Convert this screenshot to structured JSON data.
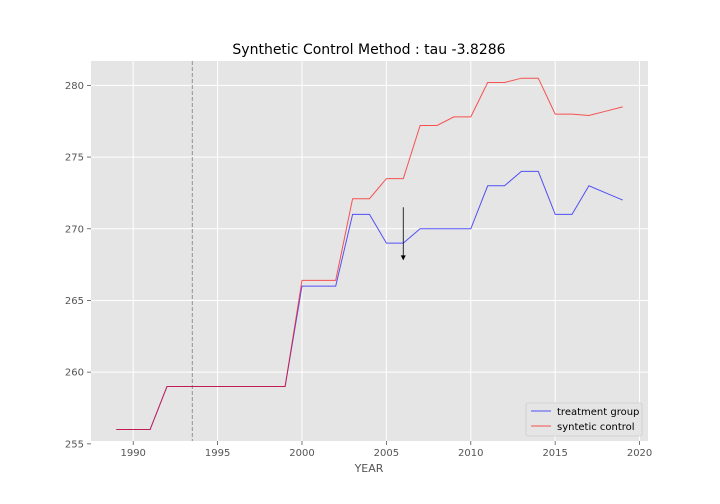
{
  "chart_data": {
    "type": "line",
    "title": "Synthetic Control Method : tau -3.8286",
    "xlabel": "YEAR",
    "ylabel": "",
    "xlim": [
      1987.5,
      2020.5
    ],
    "ylim": [
      255.2,
      281.7
    ],
    "xticks": [
      1990,
      1995,
      2000,
      2005,
      2010,
      2015,
      2020
    ],
    "yticks": [
      255,
      260,
      265,
      270,
      275,
      280
    ],
    "grid": true,
    "background": "#e5e5e5",
    "legend": "lower-right",
    "x": [
      1989,
      1990,
      1991,
      1992,
      1993,
      1994,
      1995,
      1996,
      1997,
      1998,
      1999,
      2000,
      2001,
      2002,
      2003,
      2004,
      2005,
      2006,
      2007,
      2008,
      2009,
      2010,
      2011,
      2012,
      2013,
      2014,
      2015,
      2016,
      2017,
      2018,
      2019
    ],
    "series": [
      {
        "name": "treatment group",
        "color": "#0000ff",
        "values": [
          256,
          256,
          256,
          259,
          259,
          259,
          259,
          259,
          259,
          259,
          259,
          266,
          266,
          266,
          271,
          271,
          269,
          269,
          270,
          270,
          270,
          270,
          273,
          273,
          274,
          274,
          271,
          271,
          273,
          272.5,
          272
        ]
      },
      {
        "name": "syntetic control",
        "color": "#ff0000",
        "values": [
          256,
          256,
          256,
          259,
          259,
          259,
          259,
          259,
          259,
          259,
          259,
          266.4,
          266.4,
          266.4,
          272.1,
          272.1,
          273.5,
          273.5,
          277.2,
          277.2,
          277.8,
          277.8,
          280.2,
          280.2,
          280.5,
          280.5,
          278,
          278,
          277.9,
          278.2,
          278.5
        ]
      }
    ],
    "annotations": {
      "vline_x": 1993.5,
      "arrow": {
        "x": 2006,
        "y_from": 271.5,
        "y_to": 267.8
      }
    }
  }
}
